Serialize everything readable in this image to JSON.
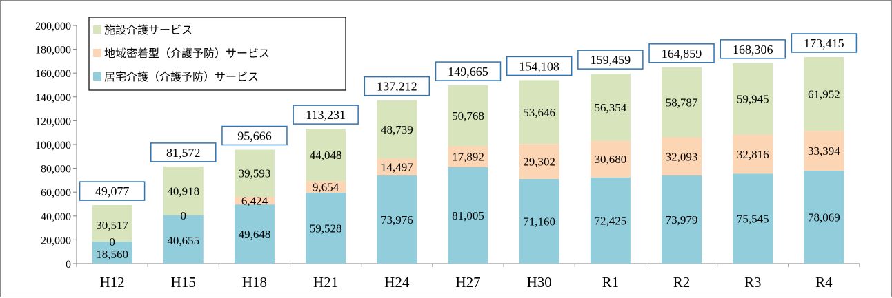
{
  "chart_data": {
    "type": "bar",
    "stacked": true,
    "categories": [
      "H12",
      "H15",
      "H18",
      "H21",
      "H24",
      "H27",
      "H30",
      "R1",
      "R2",
      "R3",
      "R4"
    ],
    "series": [
      {
        "name": "居宅介護（介護予防）サービス",
        "color": "#92cddc",
        "values": [
          18560,
          40655,
          49648,
          59528,
          73976,
          81005,
          71160,
          72425,
          73979,
          75545,
          78069
        ],
        "labels": [
          "18,560",
          "40,655",
          "49,648",
          "59,528",
          "73,976",
          "81,005",
          "71,160",
          "72,425",
          "73,979",
          "75,545",
          "78,069"
        ]
      },
      {
        "name": "地域密着型（介護予防）サービス",
        "color": "#fcd5b4",
        "values": [
          0,
          0,
          6424,
          9654,
          14497,
          17892,
          29302,
          30680,
          32093,
          32816,
          33394
        ],
        "labels": [
          "0",
          "0",
          "6,424",
          "9,654",
          "14,497",
          "17,892",
          "29,302",
          "30,680",
          "32,093",
          "32,816",
          "33,394"
        ]
      },
      {
        "name": "施設介護サービス",
        "color": "#d7e4bc",
        "values": [
          30517,
          40918,
          39593,
          44048,
          48739,
          50768,
          53646,
          56354,
          58787,
          59945,
          61952
        ],
        "labels": [
          "30,517",
          "40,918",
          "39,593",
          "44,048",
          "48,739",
          "50,768",
          "53,646",
          "56,354",
          "58,787",
          "59,945",
          "61,952"
        ]
      }
    ],
    "totals": [
      "49,077",
      "81,572",
      "95,666",
      "113,231",
      "137,212",
      "149,665",
      "154,108",
      "159,459",
      "164,859",
      "168,306",
      "173,415"
    ],
    "total_values": [
      49077,
      81572,
      95666,
      113231,
      137212,
      149665,
      154108,
      159459,
      164859,
      168306,
      173415
    ],
    "total_box_color": "#2e75b6",
    "ylim": [
      0,
      200000
    ],
    "yticks": [
      "0",
      "20,000",
      "40,000",
      "60,000",
      "80,000",
      "100,000",
      "120,000",
      "140,000",
      "160,000",
      "180,000",
      "200,000"
    ],
    "ytick_values": [
      0,
      20000,
      40000,
      60000,
      80000,
      100000,
      120000,
      140000,
      160000,
      180000,
      200000
    ],
    "grid": false,
    "legend_placement": "top-left",
    "legend_order": [
      2,
      1,
      0
    ]
  }
}
